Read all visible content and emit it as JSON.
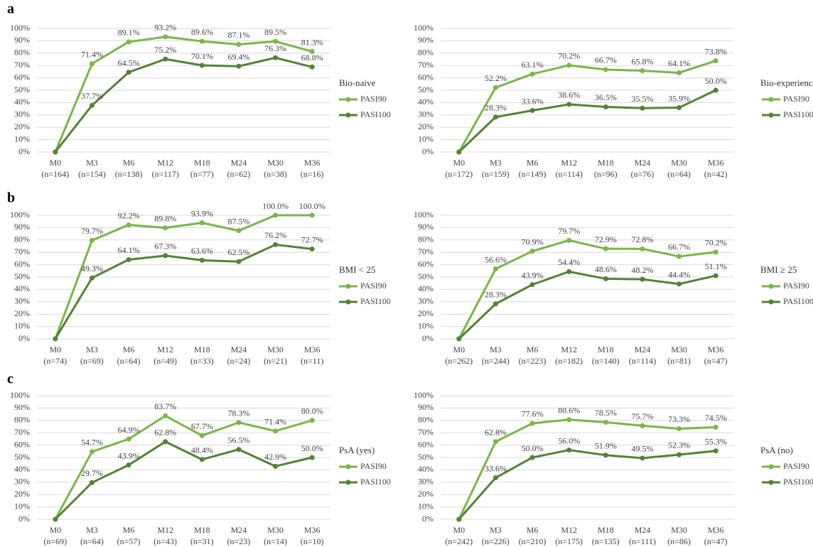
{
  "panel_labels": [
    "a",
    "b",
    "c"
  ],
  "chart_data": [
    {
      "type": "line",
      "legend_title": "Bio-naive",
      "legend_position": "right",
      "grid": true,
      "categories": [
        "M0",
        "M3",
        "M6",
        "M12",
        "M18",
        "M24",
        "M30",
        "M36"
      ],
      "sample_sizes": [
        "(n=164)",
        "(n=154)",
        "(n=138)",
        "(n=117)",
        "(n=77)",
        "(n=62)",
        "(n=38)",
        "(n=16)"
      ],
      "ylim": [
        0,
        100
      ],
      "yticks": [
        {
          "value": 0,
          "label": "0%"
        },
        {
          "value": 10,
          "label": "10%"
        },
        {
          "value": 20,
          "label": "20%"
        },
        {
          "value": 30,
          "label": "30%"
        },
        {
          "value": 40,
          "label": "40%"
        },
        {
          "value": 50,
          "label": "50%"
        },
        {
          "value": 60,
          "label": "60%"
        },
        {
          "value": 70,
          "label": "70%"
        },
        {
          "value": 80,
          "label": "80%"
        },
        {
          "value": 90,
          "label": "90%"
        },
        {
          "value": 100,
          "label": "100%"
        }
      ],
      "series": [
        {
          "name": "PASI90",
          "color": "#7ab648",
          "values": [
            0,
            71.4,
            89.1,
            93.2,
            89.6,
            87.1,
            89.5,
            81.3
          ],
          "value_labels": [
            null,
            "71.4%",
            "89.1%",
            "93.2%",
            "89.6%",
            "87.1%",
            "89.5%",
            "81.3%"
          ]
        },
        {
          "name": "PASI100",
          "color": "#548235",
          "values": [
            0,
            37.7,
            64.5,
            75.2,
            70.1,
            69.4,
            76.3,
            68.8
          ],
          "value_labels": [
            null,
            "37.7%",
            "64.5%",
            "75.2%",
            "70.1%",
            "69.4%",
            "76.3%",
            "68.8%"
          ]
        }
      ]
    },
    {
      "type": "line",
      "legend_title": "Bio-experienced",
      "legend_position": "right",
      "grid": true,
      "categories": [
        "M0",
        "M3",
        "M6",
        "M12",
        "M18",
        "M24",
        "M30",
        "M36"
      ],
      "sample_sizes": [
        "(n=172)",
        "(n=159)",
        "(n=149)",
        "(n=114)",
        "(n=96)",
        "(n=76)",
        "(n=64)",
        "(n=42)"
      ],
      "ylim": [
        0,
        100
      ],
      "yticks": [
        {
          "value": 0,
          "label": "0%"
        },
        {
          "value": 10,
          "label": "10%"
        },
        {
          "value": 20,
          "label": "20%"
        },
        {
          "value": 30,
          "label": "30%"
        },
        {
          "value": 40,
          "label": "40%"
        },
        {
          "value": 50,
          "label": "50%"
        },
        {
          "value": 60,
          "label": "60%"
        },
        {
          "value": 70,
          "label": "70%"
        },
        {
          "value": 80,
          "label": "80%"
        },
        {
          "value": 90,
          "label": "90%"
        },
        {
          "value": 100,
          "label": "100%"
        }
      ],
      "series": [
        {
          "name": "PASI90",
          "color": "#7ab648",
          "values": [
            0,
            52.2,
            63.1,
            70.2,
            66.7,
            65.8,
            64.1,
            73.8
          ],
          "value_labels": [
            null,
            "52.2%",
            "63.1%",
            "70.2%",
            "66.7%",
            "65.8%",
            "64.1%",
            "73.8%"
          ]
        },
        {
          "name": "PASI100",
          "color": "#548235",
          "values": [
            0,
            28.3,
            33.6,
            38.6,
            36.5,
            35.5,
            35.9,
            50.0
          ],
          "value_labels": [
            null,
            "28.3%",
            "33.6%",
            "38.6%",
            "36.5%",
            "35.5%",
            "35.9%",
            "50.0%"
          ]
        }
      ]
    },
    {
      "type": "line",
      "legend_title": "BMI < 25",
      "legend_position": "right",
      "grid": true,
      "categories": [
        "M0",
        "M3",
        "M6",
        "M12",
        "M18",
        "M24",
        "M30",
        "M36"
      ],
      "sample_sizes": [
        "(n=74)",
        "(n=69)",
        "(n=64)",
        "(n=49)",
        "(n=33)",
        "(n=24)",
        "(n=21)",
        "(n=11)"
      ],
      "ylim": [
        0,
        100
      ],
      "yticks": [
        {
          "value": 0,
          "label": "0%"
        },
        {
          "value": 10,
          "label": "10%"
        },
        {
          "value": 20,
          "label": "20%"
        },
        {
          "value": 30,
          "label": "30%"
        },
        {
          "value": 40,
          "label": "40%"
        },
        {
          "value": 50,
          "label": "50%"
        },
        {
          "value": 60,
          "label": "60%"
        },
        {
          "value": 70,
          "label": "70%"
        },
        {
          "value": 80,
          "label": "80%"
        },
        {
          "value": 90,
          "label": "90%"
        },
        {
          "value": 100,
          "label": "100%"
        }
      ],
      "series": [
        {
          "name": "PASI90",
          "color": "#7ab648",
          "values": [
            0,
            79.7,
            92.2,
            89.8,
            93.9,
            87.5,
            100.0,
            100.0
          ],
          "value_labels": [
            null,
            "79.7%",
            "92.2%",
            "89.8%",
            "93.9%",
            "87.5%",
            "100.0%",
            "100.0%"
          ]
        },
        {
          "name": "PASI100",
          "color": "#548235",
          "values": [
            0,
            49.3,
            64.1,
            67.3,
            63.6,
            62.5,
            76.2,
            72.7
          ],
          "value_labels": [
            null,
            "49.3%",
            "64.1%",
            "67.3%",
            "63.6%",
            "62.5%",
            "76.2%",
            "72.7%"
          ]
        }
      ]
    },
    {
      "type": "line",
      "legend_title": "BMI ≥ 25",
      "legend_position": "right",
      "grid": true,
      "categories": [
        "M0",
        "M3",
        "M6",
        "M12",
        "M18",
        "M24",
        "M30",
        "M36"
      ],
      "sample_sizes": [
        "(n=262)",
        "(n=244)",
        "(n=223)",
        "(n=182)",
        "(n=140)",
        "(n=114)",
        "(n=81)",
        "(n=47)"
      ],
      "ylim": [
        0,
        100
      ],
      "yticks": [
        {
          "value": 0,
          "label": "0%"
        },
        {
          "value": 10,
          "label": "10%"
        },
        {
          "value": 20,
          "label": "20%"
        },
        {
          "value": 30,
          "label": "30%"
        },
        {
          "value": 40,
          "label": "40%"
        },
        {
          "value": 50,
          "label": "50%"
        },
        {
          "value": 60,
          "label": "60%"
        },
        {
          "value": 70,
          "label": "70%"
        },
        {
          "value": 80,
          "label": "80%"
        },
        {
          "value": 90,
          "label": "90%"
        },
        {
          "value": 100,
          "label": "100%"
        }
      ],
      "series": [
        {
          "name": "PASI90",
          "color": "#7ab648",
          "values": [
            0,
            56.6,
            70.9,
            79.7,
            72.9,
            72.8,
            66.7,
            70.2
          ],
          "value_labels": [
            null,
            "56.6%",
            "70.9%",
            "79.7%",
            "72.9%",
            "72.8%",
            "66.7%",
            "70.2%"
          ]
        },
        {
          "name": "PASI100",
          "color": "#548235",
          "values": [
            0,
            28.3,
            43.9,
            54.4,
            48.6,
            48.2,
            44.4,
            51.1
          ],
          "value_labels": [
            null,
            "28.3%",
            "43.9%",
            "54.4%",
            "48.6%",
            "48.2%",
            "44.4%",
            "51.1%"
          ]
        }
      ]
    },
    {
      "type": "line",
      "legend_title": "PsA (yes)",
      "legend_position": "right",
      "grid": true,
      "categories": [
        "M0",
        "M3",
        "M6",
        "M12",
        "M18",
        "M24",
        "M30",
        "M36"
      ],
      "sample_sizes": [
        "(n=69)",
        "(n=64)",
        "(n=57)",
        "(n=43)",
        "(n=31)",
        "(n=23)",
        "(n=14)",
        "(n=10)"
      ],
      "ylim": [
        0,
        100
      ],
      "yticks": [
        {
          "value": 0,
          "label": "0%"
        },
        {
          "value": 10,
          "label": "10%"
        },
        {
          "value": 20,
          "label": "20%"
        },
        {
          "value": 30,
          "label": "30%"
        },
        {
          "value": 40,
          "label": "40%"
        },
        {
          "value": 50,
          "label": "50%"
        },
        {
          "value": 60,
          "label": "60%"
        },
        {
          "value": 70,
          "label": "70%"
        },
        {
          "value": 80,
          "label": "80%"
        },
        {
          "value": 90,
          "label": "90%"
        },
        {
          "value": 100,
          "label": "100%"
        }
      ],
      "series": [
        {
          "name": "PASI90",
          "color": "#7ab648",
          "values": [
            0,
            54.7,
            64.9,
            83.7,
            67.7,
            78.3,
            71.4,
            80.0
          ],
          "value_labels": [
            null,
            "54.7%",
            "64.9%",
            "83.7%",
            "67.7%",
            "78.3%",
            "71.4%",
            "80.0%"
          ]
        },
        {
          "name": "PASI100",
          "color": "#548235",
          "values": [
            0,
            29.7,
            43.9,
            62.8,
            48.4,
            56.5,
            42.9,
            50.0
          ],
          "value_labels": [
            null,
            "29.7%",
            "43.9%",
            "62.8%",
            "48.4%",
            "56.5%",
            "42.9%",
            "50.0%"
          ]
        }
      ]
    },
    {
      "type": "line",
      "legend_title": "PsA (no)",
      "legend_position": "right",
      "grid": true,
      "categories": [
        "M0",
        "M3",
        "M6",
        "M12",
        "M18",
        "M24",
        "M30",
        "M36"
      ],
      "sample_sizes": [
        "(n=242)",
        "(n=226)",
        "(n=210)",
        "(n=175)",
        "(n=135)",
        "(n=111)",
        "(n=86)",
        "(n=47)"
      ],
      "ylim": [
        0,
        100
      ],
      "yticks": [
        {
          "value": 0,
          "label": "0%"
        },
        {
          "value": 10,
          "label": "10%"
        },
        {
          "value": 20,
          "label": "20%"
        },
        {
          "value": 30,
          "label": "30%"
        },
        {
          "value": 40,
          "label": "40%"
        },
        {
          "value": 50,
          "label": "50%"
        },
        {
          "value": 60,
          "label": "60%"
        },
        {
          "value": 70,
          "label": "70%"
        },
        {
          "value": 80,
          "label": "80%"
        },
        {
          "value": 90,
          "label": "90%"
        },
        {
          "value": 100,
          "label": "100%"
        }
      ],
      "series": [
        {
          "name": "PASI90",
          "color": "#7ab648",
          "values": [
            0,
            62.8,
            77.6,
            80.6,
            78.5,
            75.7,
            73.3,
            74.5
          ],
          "value_labels": [
            null,
            "62.8%",
            "77.6%",
            "80.6%",
            "78.5%",
            "75.7%",
            "73.3%",
            "74.5%"
          ]
        },
        {
          "name": "PASI100",
          "color": "#548235",
          "values": [
            0,
            33.6,
            50.0,
            56.0,
            51.9,
            49.5,
            52.3,
            55.3
          ],
          "value_labels": [
            null,
            "33.6%",
            "50.0%",
            "56.0%",
            "51.9%",
            "49.5%",
            "52.3%",
            "55.3%"
          ]
        }
      ]
    }
  ]
}
